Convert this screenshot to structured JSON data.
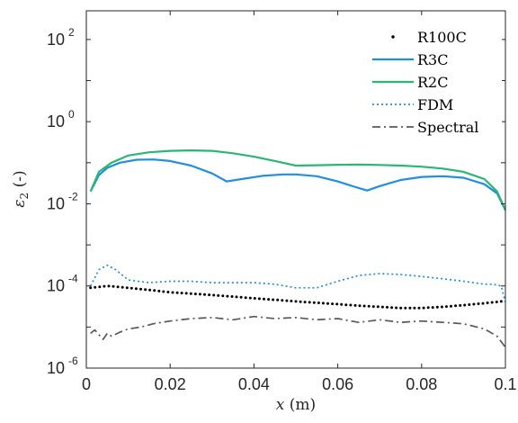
{
  "chart_data": {
    "type": "line",
    "title": "",
    "xlabel_var": "x",
    "xlabel_unit": "(m)",
    "ylabel_var": "ε",
    "ylabel_sub": "2",
    "ylabel_unit": "(-)",
    "xlim": [
      0,
      0.1
    ],
    "ylim": [
      1e-06,
      500
    ],
    "yscale": "log",
    "grid": false,
    "legend_position": "top-right",
    "x_ticks": [
      {
        "value": 0,
        "label": "0"
      },
      {
        "value": 0.02,
        "label": "0.02"
      },
      {
        "value": 0.04,
        "label": "0.04"
      },
      {
        "value": 0.06,
        "label": "0.06"
      },
      {
        "value": 0.08,
        "label": "0.08"
      },
      {
        "value": 0.1,
        "label": "0.1"
      }
    ],
    "y_ticks": [
      {
        "value": 1e-06,
        "base": "10",
        "exp": "-6"
      },
      {
        "value": 0.0001,
        "base": "10",
        "exp": "-4"
      },
      {
        "value": 0.01,
        "base": "10",
        "exp": "-2"
      },
      {
        "value": 1,
        "base": "10",
        "exp": "0"
      },
      {
        "value": 100,
        "base": "10",
        "exp": "2"
      }
    ],
    "series": [
      {
        "name": "R100C",
        "style": "dots",
        "color": "#000000",
        "x": [
          0.001,
          0.005,
          0.01,
          0.015,
          0.02,
          0.025,
          0.03,
          0.035,
          0.04,
          0.045,
          0.05,
          0.055,
          0.06,
          0.065,
          0.07,
          0.075,
          0.08,
          0.085,
          0.09,
          0.095,
          0.099
        ],
        "y": [
          9e-05,
          0.0001,
          9e-05,
          8e-05,
          7e-05,
          6.5e-05,
          6e-05,
          5.5e-05,
          5e-05,
          4.6e-05,
          4.2e-05,
          3.9e-05,
          3.6e-05,
          3.3e-05,
          3.1e-05,
          2.9e-05,
          2.9e-05,
          3.1e-05,
          3.4e-05,
          3.8e-05,
          4.2e-05
        ]
      },
      {
        "name": "R3C",
        "style": "solid",
        "color": "#1f8fe0",
        "x": [
          0.001,
          0.003,
          0.005,
          0.008,
          0.012,
          0.016,
          0.02,
          0.025,
          0.03,
          0.0335,
          0.037,
          0.042,
          0.047,
          0.05,
          0.055,
          0.06,
          0.064,
          0.067,
          0.07,
          0.075,
          0.08,
          0.085,
          0.09,
          0.095,
          0.098,
          0.1
        ],
        "y": [
          0.02,
          0.05,
          0.075,
          0.1,
          0.118,
          0.12,
          0.11,
          0.085,
          0.055,
          0.035,
          0.04,
          0.048,
          0.052,
          0.052,
          0.047,
          0.035,
          0.026,
          0.021,
          0.027,
          0.038,
          0.045,
          0.047,
          0.043,
          0.03,
          0.018,
          0.007
        ]
      },
      {
        "name": "R2C",
        "style": "solid",
        "color": "#2bb673",
        "x": [
          0.001,
          0.003,
          0.006,
          0.01,
          0.015,
          0.02,
          0.025,
          0.03,
          0.035,
          0.04,
          0.045,
          0.05,
          0.055,
          0.06,
          0.065,
          0.07,
          0.075,
          0.08,
          0.085,
          0.09,
          0.095,
          0.098,
          0.1
        ],
        "y": [
          0.02,
          0.06,
          0.1,
          0.15,
          0.18,
          0.195,
          0.2,
          0.195,
          0.17,
          0.14,
          0.11,
          0.085,
          0.087,
          0.089,
          0.09,
          0.088,
          0.085,
          0.08,
          0.072,
          0.06,
          0.04,
          0.02,
          0.007
        ]
      },
      {
        "name": "FDM",
        "style": "dotted",
        "color": "#1f8fe0",
        "x": [
          0.001,
          0.003,
          0.005,
          0.007,
          0.01,
          0.015,
          0.02,
          0.025,
          0.03,
          0.035,
          0.04,
          0.045,
          0.05,
          0.055,
          0.06,
          0.065,
          0.07,
          0.075,
          0.08,
          0.085,
          0.09,
          0.095,
          0.097,
          0.099,
          0.1
        ],
        "y": [
          0.0001,
          0.00025,
          0.00032,
          0.00025,
          0.00014,
          0.00012,
          0.00013,
          0.00013,
          0.00012,
          0.00012,
          0.00012,
          0.00011,
          9e-05,
          9e-05,
          0.00013,
          0.00018,
          0.0002,
          0.00019,
          0.00017,
          0.00015,
          0.00013,
          0.00011,
          0.00011,
          0.0001,
          4e-05
        ]
      },
      {
        "name": "Spectral",
        "style": "dashdot",
        "color": "#595959",
        "x": [
          0.001,
          0.002,
          0.003,
          0.004,
          0.005,
          0.006,
          0.008,
          0.01,
          0.013,
          0.016,
          0.02,
          0.025,
          0.03,
          0.035,
          0.04,
          0.045,
          0.05,
          0.055,
          0.06,
          0.065,
          0.07,
          0.075,
          0.08,
          0.085,
          0.09,
          0.095,
          0.098,
          0.1
        ],
        "y": [
          7e-06,
          8.5e-06,
          6.5e-06,
          5e-06,
          7e-06,
          6e-06,
          7.5e-06,
          9e-06,
          1e-05,
          1.2e-05,
          1.4e-05,
          1.6e-05,
          1.7e-05,
          1.5e-05,
          1.8e-05,
          1.6e-05,
          1.7e-05,
          1.5e-05,
          1.6e-05,
          1.3e-05,
          1.5e-05,
          1.3e-05,
          1.4e-05,
          1.3e-05,
          1.2e-05,
          9e-06,
          6e-06,
          3.2e-06
        ]
      }
    ]
  }
}
